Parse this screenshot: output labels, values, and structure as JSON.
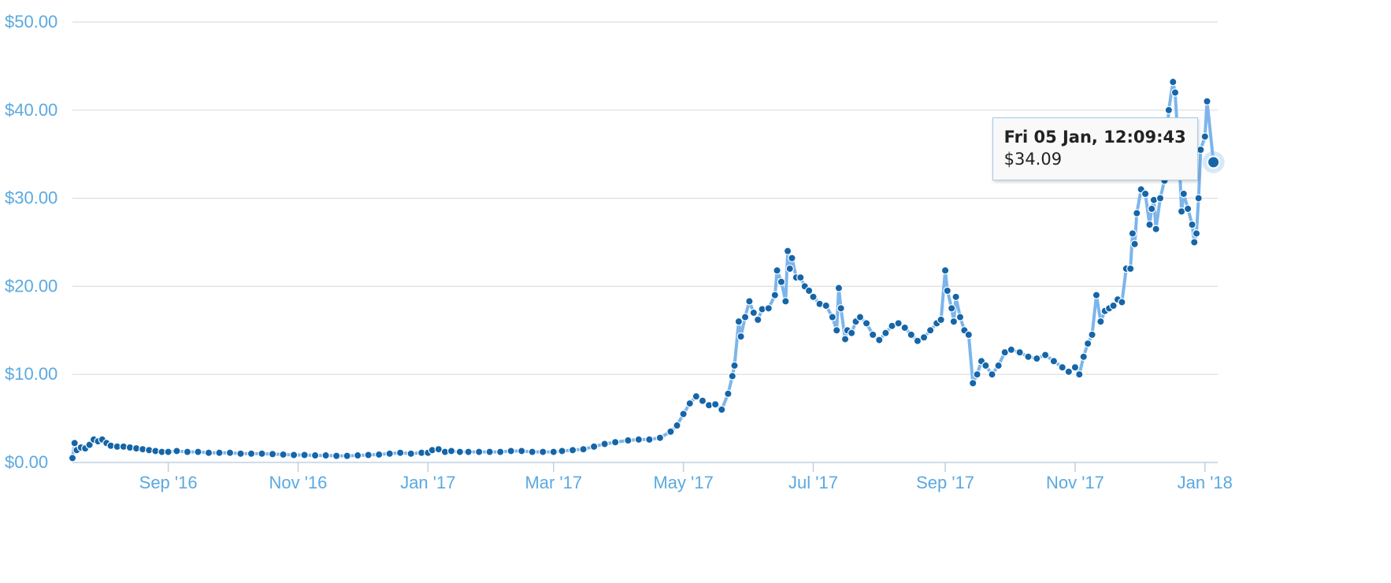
{
  "colors": {
    "line": "#7cb5ec",
    "marker": "#1565a8",
    "axis_text": "#5aa9e0",
    "grid": "#dddddd"
  },
  "tooltip": {
    "title": "Fri 05 Jan, 12:09:43",
    "value": "$34.09"
  },
  "chart_data": {
    "type": "line",
    "title": "",
    "xlabel": "",
    "ylabel": "",
    "ylim": [
      0,
      50
    ],
    "y_ticks": [
      "$0.00",
      "$10.00",
      "$20.00",
      "$30.00",
      "$40.00",
      "$50.00"
    ],
    "x_range": [
      "2016-07-18",
      "2018-01-07"
    ],
    "x_ticks": [
      {
        "date": "2016-09-01",
        "label": "Sep '16"
      },
      {
        "date": "2016-11-01",
        "label": "Nov '16"
      },
      {
        "date": "2017-01-01",
        "label": "Jan '17"
      },
      {
        "date": "2017-03-01",
        "label": "Mar '17"
      },
      {
        "date": "2017-05-01",
        "label": "May '17"
      },
      {
        "date": "2017-07-01",
        "label": "Jul '17"
      },
      {
        "date": "2017-09-01",
        "label": "Sep '17"
      },
      {
        "date": "2017-11-01",
        "label": "Nov '17"
      },
      {
        "date": "2018-01-01",
        "label": "Jan '18"
      }
    ],
    "grid": true,
    "legend": "none",
    "series": [
      {
        "points": [
          [
            "2016-07-18",
            0.5
          ],
          [
            "2016-07-19",
            2.2
          ],
          [
            "2016-07-20",
            1.4
          ],
          [
            "2016-07-22",
            1.7
          ],
          [
            "2016-07-24",
            1.6
          ],
          [
            "2016-07-26",
            2.0
          ],
          [
            "2016-07-28",
            2.6
          ],
          [
            "2016-07-30",
            2.4
          ],
          [
            "2016-08-01",
            2.6
          ],
          [
            "2016-08-03",
            2.2
          ],
          [
            "2016-08-05",
            1.9
          ],
          [
            "2016-08-08",
            1.8
          ],
          [
            "2016-08-11",
            1.8
          ],
          [
            "2016-08-14",
            1.7
          ],
          [
            "2016-08-17",
            1.6
          ],
          [
            "2016-08-20",
            1.5
          ],
          [
            "2016-08-23",
            1.4
          ],
          [
            "2016-08-26",
            1.3
          ],
          [
            "2016-08-29",
            1.2
          ],
          [
            "2016-09-01",
            1.2
          ],
          [
            "2016-09-05",
            1.3
          ],
          [
            "2016-09-10",
            1.2
          ],
          [
            "2016-09-15",
            1.2
          ],
          [
            "2016-09-20",
            1.1
          ],
          [
            "2016-09-25",
            1.1
          ],
          [
            "2016-09-30",
            1.1
          ],
          [
            "2016-10-05",
            1.0
          ],
          [
            "2016-10-10",
            1.0
          ],
          [
            "2016-10-15",
            1.0
          ],
          [
            "2016-10-20",
            0.95
          ],
          [
            "2016-10-25",
            0.9
          ],
          [
            "2016-10-30",
            0.85
          ],
          [
            "2016-11-04",
            0.85
          ],
          [
            "2016-11-09",
            0.8
          ],
          [
            "2016-11-14",
            0.8
          ],
          [
            "2016-11-19",
            0.75
          ],
          [
            "2016-11-24",
            0.75
          ],
          [
            "2016-11-29",
            0.8
          ],
          [
            "2016-12-04",
            0.85
          ],
          [
            "2016-12-09",
            0.9
          ],
          [
            "2016-12-14",
            1.0
          ],
          [
            "2016-12-19",
            1.1
          ],
          [
            "2016-12-24",
            1.0
          ],
          [
            "2016-12-29",
            1.1
          ],
          [
            "2017-01-01",
            1.1
          ],
          [
            "2017-01-03",
            1.4
          ],
          [
            "2017-01-06",
            1.5
          ],
          [
            "2017-01-09",
            1.2
          ],
          [
            "2017-01-12",
            1.3
          ],
          [
            "2017-01-16",
            1.2
          ],
          [
            "2017-01-20",
            1.2
          ],
          [
            "2017-01-25",
            1.2
          ],
          [
            "2017-01-30",
            1.2
          ],
          [
            "2017-02-04",
            1.2
          ],
          [
            "2017-02-09",
            1.3
          ],
          [
            "2017-02-14",
            1.3
          ],
          [
            "2017-02-19",
            1.2
          ],
          [
            "2017-02-24",
            1.2
          ],
          [
            "2017-03-01",
            1.2
          ],
          [
            "2017-03-05",
            1.3
          ],
          [
            "2017-03-10",
            1.4
          ],
          [
            "2017-03-15",
            1.5
          ],
          [
            "2017-03-20",
            1.8
          ],
          [
            "2017-03-25",
            2.1
          ],
          [
            "2017-03-30",
            2.3
          ],
          [
            "2017-04-05",
            2.5
          ],
          [
            "2017-04-10",
            2.6
          ],
          [
            "2017-04-15",
            2.6
          ],
          [
            "2017-04-20",
            2.8
          ],
          [
            "2017-04-25",
            3.5
          ],
          [
            "2017-04-28",
            4.2
          ],
          [
            "2017-05-01",
            5.5
          ],
          [
            "2017-05-04",
            6.7
          ],
          [
            "2017-05-07",
            7.5
          ],
          [
            "2017-05-10",
            7.0
          ],
          [
            "2017-05-13",
            6.5
          ],
          [
            "2017-05-16",
            6.6
          ],
          [
            "2017-05-19",
            6.0
          ],
          [
            "2017-05-22",
            7.8
          ],
          [
            "2017-05-24",
            9.8
          ],
          [
            "2017-05-25",
            11.0
          ],
          [
            "2017-05-27",
            16.0
          ],
          [
            "2017-05-28",
            14.3
          ],
          [
            "2017-05-30",
            16.5
          ],
          [
            "2017-06-01",
            18.3
          ],
          [
            "2017-06-03",
            17.0
          ],
          [
            "2017-06-05",
            16.2
          ],
          [
            "2017-06-07",
            17.4
          ],
          [
            "2017-06-10",
            17.5
          ],
          [
            "2017-06-13",
            19.0
          ],
          [
            "2017-06-14",
            21.8
          ],
          [
            "2017-06-16",
            20.5
          ],
          [
            "2017-06-18",
            18.3
          ],
          [
            "2017-06-19",
            24.0
          ],
          [
            "2017-06-20",
            22.0
          ],
          [
            "2017-06-21",
            23.2
          ],
          [
            "2017-06-23",
            21.0
          ],
          [
            "2017-06-25",
            21.0
          ],
          [
            "2017-06-27",
            20.0
          ],
          [
            "2017-06-29",
            19.5
          ],
          [
            "2017-07-01",
            18.8
          ],
          [
            "2017-07-04",
            18.0
          ],
          [
            "2017-07-07",
            17.8
          ],
          [
            "2017-07-10",
            16.5
          ],
          [
            "2017-07-12",
            15.0
          ],
          [
            "2017-07-13",
            19.8
          ],
          [
            "2017-07-14",
            17.5
          ],
          [
            "2017-07-16",
            14.0
          ],
          [
            "2017-07-17",
            15.0
          ],
          [
            "2017-07-19",
            14.7
          ],
          [
            "2017-07-21",
            16.0
          ],
          [
            "2017-07-23",
            16.5
          ],
          [
            "2017-07-26",
            15.8
          ],
          [
            "2017-07-29",
            14.5
          ],
          [
            "2017-08-01",
            13.9
          ],
          [
            "2017-08-04",
            14.7
          ],
          [
            "2017-08-07",
            15.5
          ],
          [
            "2017-08-10",
            15.8
          ],
          [
            "2017-08-13",
            15.3
          ],
          [
            "2017-08-16",
            14.5
          ],
          [
            "2017-08-19",
            13.8
          ],
          [
            "2017-08-22",
            14.2
          ],
          [
            "2017-08-25",
            15.0
          ],
          [
            "2017-08-28",
            15.8
          ],
          [
            "2017-08-30",
            16.2
          ],
          [
            "2017-09-01",
            21.8
          ],
          [
            "2017-09-02",
            19.5
          ],
          [
            "2017-09-04",
            17.5
          ],
          [
            "2017-09-05",
            16.0
          ],
          [
            "2017-09-06",
            18.8
          ],
          [
            "2017-09-08",
            16.5
          ],
          [
            "2017-09-10",
            15.0
          ],
          [
            "2017-09-12",
            14.5
          ],
          [
            "2017-09-14",
            9.0
          ],
          [
            "2017-09-16",
            10.0
          ],
          [
            "2017-09-18",
            11.5
          ],
          [
            "2017-09-20",
            11.0
          ],
          [
            "2017-09-23",
            10.0
          ],
          [
            "2017-09-26",
            11.0
          ],
          [
            "2017-09-29",
            12.5
          ],
          [
            "2017-10-02",
            12.8
          ],
          [
            "2017-10-06",
            12.5
          ],
          [
            "2017-10-10",
            12.0
          ],
          [
            "2017-10-14",
            11.8
          ],
          [
            "2017-10-18",
            12.2
          ],
          [
            "2017-10-22",
            11.5
          ],
          [
            "2017-10-26",
            10.8
          ],
          [
            "2017-10-29",
            10.3
          ],
          [
            "2017-11-01",
            10.8
          ],
          [
            "2017-11-03",
            10.0
          ],
          [
            "2017-11-05",
            12.0
          ],
          [
            "2017-11-07",
            13.5
          ],
          [
            "2017-11-09",
            14.5
          ],
          [
            "2017-11-11",
            19.0
          ],
          [
            "2017-11-13",
            16.0
          ],
          [
            "2017-11-15",
            17.2
          ],
          [
            "2017-11-17",
            17.5
          ],
          [
            "2017-11-19",
            17.8
          ],
          [
            "2017-11-21",
            18.5
          ],
          [
            "2017-11-23",
            18.2
          ],
          [
            "2017-11-25",
            22.0
          ],
          [
            "2017-11-27",
            22.0
          ],
          [
            "2017-11-28",
            26.0
          ],
          [
            "2017-11-29",
            24.8
          ],
          [
            "2017-11-30",
            28.3
          ],
          [
            "2017-12-02",
            31.0
          ],
          [
            "2017-12-04",
            30.5
          ],
          [
            "2017-12-06",
            27.0
          ],
          [
            "2017-12-07",
            28.8
          ],
          [
            "2017-12-08",
            29.8
          ],
          [
            "2017-12-09",
            26.5
          ],
          [
            "2017-12-11",
            30.0
          ],
          [
            "2017-12-13",
            32.0
          ],
          [
            "2017-12-15",
            40.0
          ],
          [
            "2017-12-17",
            43.2
          ],
          [
            "2017-12-18",
            42.0
          ],
          [
            "2017-12-20",
            34.0
          ],
          [
            "2017-12-21",
            28.5
          ],
          [
            "2017-12-22",
            30.5
          ],
          [
            "2017-12-24",
            28.8
          ],
          [
            "2017-12-26",
            27.0
          ],
          [
            "2017-12-27",
            25.0
          ],
          [
            "2017-12-28",
            26.0
          ],
          [
            "2017-12-29",
            30.0
          ],
          [
            "2017-12-30",
            35.5
          ],
          [
            "2018-01-01",
            37.0
          ],
          [
            "2018-01-02",
            41.0
          ],
          [
            "2018-01-05",
            34.09
          ]
        ]
      }
    ]
  }
}
